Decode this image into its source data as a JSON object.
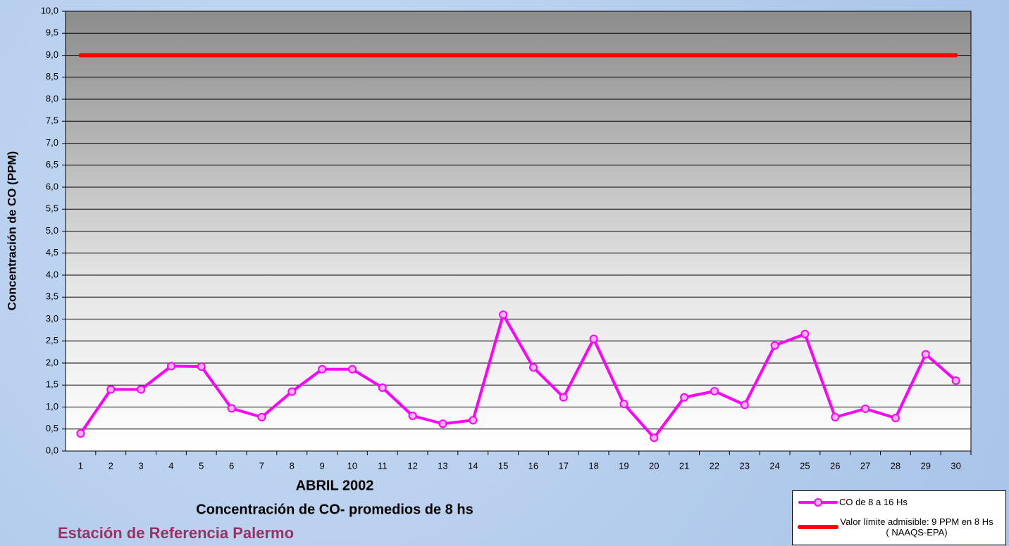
{
  "chart_data": {
    "type": "line",
    "title": "Concentración de CO- promedios de 8 hs",
    "xlabel": "ABRIL 2002",
    "ylabel": "Concentración de CO (PPM)",
    "footer": "Estación de Referencia Palermo",
    "categories": [
      "1",
      "2",
      "3",
      "4",
      "5",
      "6",
      "7",
      "8",
      "9",
      "10",
      "11",
      "12",
      "13",
      "14",
      "15",
      "16",
      "17",
      "18",
      "19",
      "20",
      "21",
      "22",
      "23",
      "24",
      "25",
      "26",
      "27",
      "28",
      "29",
      "30"
    ],
    "series": [
      {
        "name": "CO de 8 a 16 Hs",
        "color": "#ff00ff",
        "marker": true,
        "values": [
          0.4,
          1.4,
          1.4,
          1.93,
          1.92,
          0.97,
          0.77,
          1.35,
          1.86,
          1.86,
          1.44,
          0.8,
          0.62,
          0.7,
          3.1,
          1.9,
          1.22,
          2.55,
          1.07,
          0.3,
          1.22,
          1.36,
          1.05,
          2.4,
          2.66,
          0.77,
          0.96,
          0.75,
          2.2,
          1.6
        ]
      },
      {
        "name": "Valor límite admisible: 9 PPM en 8 Hs ( NAAQS-EPA)",
        "color": "#ff0000",
        "marker": false,
        "values": [
          9,
          9,
          9,
          9,
          9,
          9,
          9,
          9,
          9,
          9,
          9,
          9,
          9,
          9,
          9,
          9,
          9,
          9,
          9,
          9,
          9,
          9,
          9,
          9,
          9,
          9,
          9,
          9,
          9,
          9
        ]
      }
    ],
    "ylim": [
      0,
      10
    ],
    "yticks": [
      {
        "value": 0,
        "label": "0,0"
      },
      {
        "value": 0.5,
        "label": "0,5"
      },
      {
        "value": 1,
        "label": "1,0"
      },
      {
        "value": 1.5,
        "label": "1,5"
      },
      {
        "value": 2,
        "label": "2,0"
      },
      {
        "value": 2.5,
        "label": "2,5"
      },
      {
        "value": 3,
        "label": "3,0"
      },
      {
        "value": 3.5,
        "label": "3,5"
      },
      {
        "value": 4,
        "label": "4,0"
      },
      {
        "value": 4.5,
        "label": "4,5"
      },
      {
        "value": 5,
        "label": "5,0"
      },
      {
        "value": 5.5,
        "label": "5,5"
      },
      {
        "value": 6,
        "label": "6,0"
      },
      {
        "value": 6.5,
        "label": "6,5"
      },
      {
        "value": 7,
        "label": "7,0"
      },
      {
        "value": 7.5,
        "label": "7,5"
      },
      {
        "value": 8,
        "label": "8,0"
      },
      {
        "value": 8.5,
        "label": "8,5"
      },
      {
        "value": 9,
        "label": "9,0"
      },
      {
        "value": 9.5,
        "label": "9,5"
      },
      {
        "value": 10,
        "label": "10,0"
      }
    ],
    "grid": true
  }
}
